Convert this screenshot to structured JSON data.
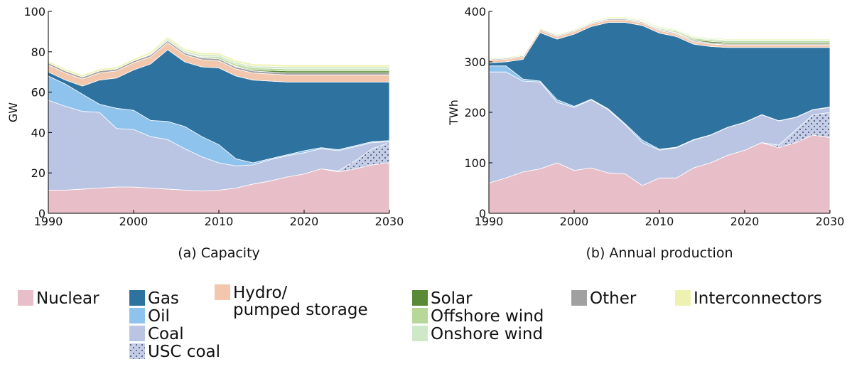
{
  "chart_data": [
    {
      "type": "stacked-area",
      "title": "(a) Capacity",
      "y_label": "GW",
      "x": [
        1990,
        1992,
        1994,
        1996,
        1998,
        2000,
        2002,
        2004,
        2006,
        2008,
        2010,
        2012,
        2014,
        2016,
        2018,
        2020,
        2022,
        2024,
        2026,
        2028,
        2030
      ],
      "xlim": [
        1990,
        2030
      ],
      "xticks": [
        1990,
        2000,
        2010,
        2020,
        2030
      ],
      "ylim": [
        0,
        100
      ],
      "yticks": [
        0,
        20,
        40,
        60,
        80,
        100
      ],
      "series": [
        {
          "name": "Nuclear",
          "color": "#e8bfc8",
          "values": [
            11.5,
            11.5,
            12,
            12.5,
            13,
            13,
            12.5,
            12,
            11.5,
            11,
            11.5,
            12.5,
            14.5,
            16,
            18,
            19.5,
            22,
            20.5,
            22,
            24,
            25
          ]
        },
        {
          "name": "USC coal",
          "color": "#c3cde8",
          "pattern": "dots",
          "values": [
            0,
            0,
            0,
            0,
            0,
            0,
            0,
            0,
            0,
            0,
            0,
            0,
            0,
            0,
            0,
            0,
            0,
            0.5,
            4,
            8,
            10
          ]
        },
        {
          "name": "Coal",
          "color": "#b9c5e3",
          "values": [
            44.5,
            41.5,
            38.5,
            37.5,
            29,
            28.5,
            25.5,
            24.5,
            20.5,
            17,
            13.5,
            11,
            9.5,
            10.5,
            10.5,
            10.5,
            10,
            10,
            7,
            3,
            0.5
          ]
        },
        {
          "name": "Oil",
          "color": "#8ec3ee",
          "values": [
            12,
            11,
            8.5,
            4,
            10,
            9.5,
            8,
            9,
            11,
            10,
            9,
            3.5,
            1,
            0.5,
            0.5,
            1,
            0.5,
            0.5,
            0.5,
            0.5,
            0.5
          ]
        },
        {
          "name": "Gas",
          "color": "#2e73a0",
          "values": [
            2,
            2,
            4,
            12,
            15,
            20,
            28,
            35.5,
            32,
            34.5,
            38,
            41,
            41,
            38.5,
            36,
            34,
            32.5,
            33.5,
            31.5,
            29.5,
            29
          ]
        },
        {
          "name": "Hydro/\npumped storage",
          "color": "#f2c7ad",
          "values": [
            3.5,
            3.5,
            3.5,
            3.5,
            3.5,
            3.5,
            3.5,
            3.5,
            3.5,
            3.5,
            3.5,
            3.5,
            3.5,
            3.5,
            3.5,
            3.5,
            3.5,
            3.5,
            3.5,
            3.5,
            3.5
          ]
        },
        {
          "name": "Other",
          "color": "#a0a0a0",
          "values": [
            1,
            1,
            1,
            1,
            1,
            1,
            1,
            1,
            1,
            1,
            1,
            1,
            1,
            1,
            1,
            1,
            1,
            1,
            1,
            1,
            1
          ]
        },
        {
          "name": "Solar",
          "color": "#5a8a35",
          "values": [
            0,
            0,
            0,
            0,
            0,
            0,
            0,
            0,
            0,
            0,
            0,
            0.3,
            0.5,
            0.8,
            1,
            1,
            1,
            1,
            1,
            1,
            1
          ]
        },
        {
          "name": "Offshore wind",
          "color": "#b8d89a",
          "values": [
            0,
            0,
            0,
            0,
            0,
            0,
            0,
            0,
            0,
            0.5,
            1,
            1,
            1,
            1,
            1,
            1,
            1,
            1,
            1,
            1,
            1
          ]
        },
        {
          "name": "Onshore wind",
          "color": "#cfe8c8",
          "values": [
            0,
            0,
            0,
            0,
            0,
            0,
            0.5,
            1,
            1,
            1,
            1,
            1,
            1,
            1,
            1,
            1,
            1,
            1,
            1,
            1,
            1
          ]
        },
        {
          "name": "Interconnectors",
          "color": "#eef2b0",
          "values": [
            1,
            1,
            1,
            1,
            1,
            1,
            1,
            1,
            1,
            1,
            1,
            1,
            1,
            1,
            1,
            1,
            1,
            1,
            1,
            1,
            1
          ]
        }
      ]
    },
    {
      "type": "stacked-area",
      "title": "(b) Annual production",
      "y_label": "TWh",
      "x": [
        1990,
        1992,
        1994,
        1996,
        1998,
        2000,
        2002,
        2004,
        2006,
        2008,
        2010,
        2012,
        2014,
        2016,
        2018,
        2020,
        2022,
        2024,
        2026,
        2028,
        2030
      ],
      "xlim": [
        1990,
        2030
      ],
      "xticks": [
        1990,
        2000,
        2010,
        2020,
        2030
      ],
      "ylim": [
        0,
        400
      ],
      "yticks": [
        0,
        100,
        200,
        300,
        400
      ],
      "series": [
        {
          "name": "Nuclear",
          "color": "#e8bfc8",
          "values": [
            60,
            70,
            82,
            88,
            100,
            85,
            90,
            80,
            78,
            55,
            70,
            70,
            90,
            100,
            115,
            125,
            140,
            130,
            140,
            155,
            150
          ]
        },
        {
          "name": "USC coal",
          "color": "#c3cde8",
          "pattern": "dots",
          "values": [
            0,
            0,
            0,
            0,
            0,
            0,
            0,
            0,
            0,
            0,
            0,
            0,
            0,
            0,
            0,
            0,
            0,
            5,
            25,
            40,
            50
          ]
        },
        {
          "name": "Coal",
          "color": "#b9c5e3",
          "values": [
            220,
            210,
            180,
            172,
            120,
            125,
            135,
            125,
            97,
            85,
            55,
            60,
            55,
            55,
            55,
            55,
            55,
            48,
            25,
            10,
            10
          ]
        },
        {
          "name": "Oil",
          "color": "#8ec3ee",
          "values": [
            12,
            12,
            4,
            2,
            5,
            2,
            1,
            2,
            2,
            5,
            2,
            1,
            1,
            0.5,
            0.5,
            0.5,
            0.5,
            0.5,
            0.5,
            0.5,
            0.5
          ]
        },
        {
          "name": "Gas",
          "color": "#2e73a0",
          "values": [
            6,
            8,
            39,
            96,
            120,
            143,
            144,
            171,
            201,
            227,
            230,
            219,
            189,
            175,
            158,
            148,
            133,
            145,
            138,
            123,
            118
          ]
        },
        {
          "name": "Hydro/\npumped storage",
          "color": "#f2c7ad",
          "values": [
            5,
            5,
            5,
            5,
            5,
            5,
            5,
            5,
            5,
            5,
            5,
            5,
            5,
            5,
            5,
            5,
            5,
            5,
            5,
            5,
            5
          ]
        },
        {
          "name": "Other",
          "color": "#a0a0a0",
          "values": [
            2,
            2,
            2,
            2,
            2,
            2,
            2,
            2,
            2,
            2,
            2,
            2,
            2,
            2,
            2,
            2,
            2,
            2,
            2,
            2,
            2
          ]
        },
        {
          "name": "Solar",
          "color": "#5a8a35",
          "values": [
            0,
            0,
            0,
            0,
            0,
            0,
            0,
            0,
            0,
            0,
            0,
            1,
            2,
            3,
            3,
            3,
            3,
            3,
            3,
            3,
            3
          ]
        },
        {
          "name": "Offshore wind",
          "color": "#b8d89a",
          "values": [
            0,
            0,
            0,
            0,
            0,
            0,
            0,
            0,
            0,
            1,
            2,
            3,
            3,
            3,
            3,
            3,
            3,
            3,
            3,
            3,
            3
          ]
        },
        {
          "name": "Onshore wind",
          "color": "#cfe8c8",
          "values": [
            0,
            0,
            0,
            0,
            0,
            0,
            1,
            2,
            2,
            2,
            2,
            2,
            2,
            2,
            2,
            2,
            2,
            2,
            2,
            2,
            2
          ]
        },
        {
          "name": "Interconnectors",
          "color": "#eef2b0",
          "values": [
            2,
            2,
            2,
            2,
            2,
            2,
            2,
            2,
            2,
            2,
            2,
            2,
            2,
            2,
            2,
            2,
            2,
            2,
            2,
            2,
            2
          ]
        }
      ]
    }
  ]
}
